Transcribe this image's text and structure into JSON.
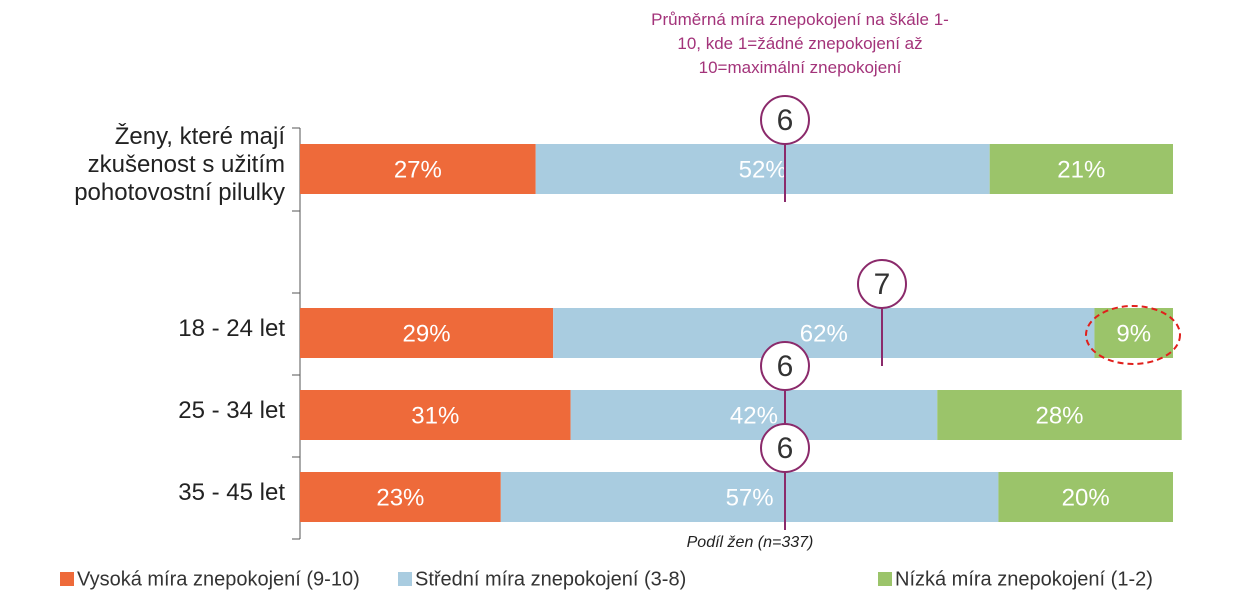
{
  "chart_data": {
    "type": "stacked_barh",
    "annotation": "Průměrná míra znepokojení na škále 1-10, kde 1=žádné znepokojení až 10=maximální znepokojení",
    "xlabel": "Podíl žen (n=337)",
    "categories": [
      "Ženy, které mají zkušenost s užitím pohotovostní pilulky",
      null,
      "18 - 24 let",
      "25 - 34 let",
      "35 - 45 let"
    ],
    "series": [
      {
        "name": "Vysoká míra znepokojení (9-10)",
        "color": "#ee6a3a",
        "values": [
          27,
          null,
          29,
          31,
          23
        ],
        "value_labels": [
          "27%",
          null,
          "29%",
          "31%",
          "23%"
        ]
      },
      {
        "name": "Střední míra znepokojení (3-8)",
        "color": "#a9cce0",
        "values": [
          52,
          null,
          62,
          42,
          57
        ],
        "value_labels": [
          "52%",
          null,
          "62%",
          "42%",
          "57%"
        ]
      },
      {
        "name": "Nízká míra znepokojení (1-2)",
        "color": "#9bc46a",
        "values": [
          21,
          null,
          9,
          28,
          20
        ],
        "value_labels": [
          "21%",
          null,
          "9%",
          "28%",
          "20%"
        ]
      }
    ],
    "mean_values": [
      6,
      null,
      7,
      6,
      6
    ],
    "mean_range": [
      1,
      10
    ],
    "xlim": [
      0,
      100
    ]
  }
}
